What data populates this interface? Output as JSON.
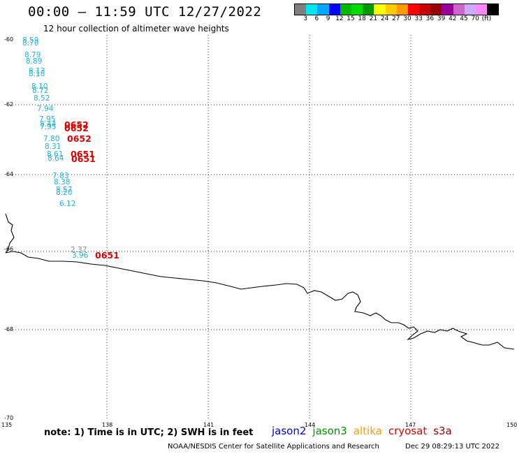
{
  "header": {
    "title": "00:00 – 11:59 UTC 12/27/2022",
    "subtitle": "12 hour collection of altimeter wave heights"
  },
  "colorbar": {
    "colors": [
      "#7f7f7f",
      "#00e5ee",
      "#00a8ff",
      "#0000ff",
      "#00bb00",
      "#00dd00",
      "#009900",
      "#ffff00",
      "#ffcc00",
      "#ff9900",
      "#ff0000",
      "#cc0000",
      "#990000",
      "#990099",
      "#cc66cc",
      "#ccaaff",
      "#ff88ff",
      "#000000"
    ],
    "labels": [
      "3",
      "6",
      "9",
      "12",
      "15",
      "18",
      "21",
      "24",
      "27",
      "30",
      "33",
      "36",
      "39",
      "42",
      "45",
      "70",
      "(ft)"
    ]
  },
  "axes": {
    "lat_labels": [
      "-60",
      "-62",
      "-64",
      "-66",
      "-68",
      "-70"
    ],
    "lon_labels": [
      "135",
      "138",
      "141",
      "144",
      "147",
      "150"
    ]
  },
  "annotations": [
    {
      "text": "8.59",
      "color": "cyan"
    },
    {
      "text": "8.70",
      "color": "cyan"
    },
    {
      "text": "8.79",
      "color": "cyan"
    },
    {
      "text": "8.89",
      "color": "cyan"
    },
    {
      "text": "8.13",
      "color": "cyan"
    },
    {
      "text": "8.18",
      "color": "cyan"
    },
    {
      "text": "8.10",
      "color": "cyan"
    },
    {
      "text": "8.72",
      "color": "cyan"
    },
    {
      "text": "8.52",
      "color": "cyan"
    },
    {
      "text": "7.94",
      "color": "cyan"
    },
    {
      "text": "7.95",
      "color": "cyan"
    },
    {
      "text": "8.44",
      "color": "cyan"
    },
    {
      "text": "7.95",
      "color": "cyan"
    },
    {
      "text": "7.80",
      "color": "cyan"
    },
    {
      "text": "8.31",
      "color": "cyan"
    },
    {
      "text": "8.61",
      "color": "cyan"
    },
    {
      "text": "8.64",
      "color": "cyan"
    },
    {
      "text": "7.83",
      "color": "cyan"
    },
    {
      "text": "8.38",
      "color": "cyan"
    },
    {
      "text": "8.57",
      "color": "cyan"
    },
    {
      "text": "8.20",
      "color": "cyan"
    },
    {
      "text": "6.12",
      "color": "cyan"
    },
    {
      "text": "2.37",
      "color": "gray"
    },
    {
      "text": "3.96",
      "color": "cyan"
    },
    {
      "text": "0652",
      "color": "red"
    },
    {
      "text": "0652",
      "color": "red"
    },
    {
      "text": "0652",
      "color": "red"
    },
    {
      "text": "0651",
      "color": "red"
    },
    {
      "text": "0651",
      "color": "red"
    },
    {
      "text": "0651",
      "color": "red"
    }
  ],
  "footer": {
    "note": "note: 1) Time is in UTC; 2) SWH is in feet",
    "satellites": [
      {
        "name": "jason2",
        "color": "#0000dd"
      },
      {
        "name": "jason3",
        "color": "#009900"
      },
      {
        "name": "altika",
        "color": "#ff9900"
      },
      {
        "name": "cryosat",
        "color": "#dd0000"
      },
      {
        "name": "s3a",
        "color": "#990000"
      }
    ],
    "credit": "NOAA/NESDIS Center for Satellite Applications and Research",
    "date": "Dec 29 08:29:13 UTC 2022"
  }
}
